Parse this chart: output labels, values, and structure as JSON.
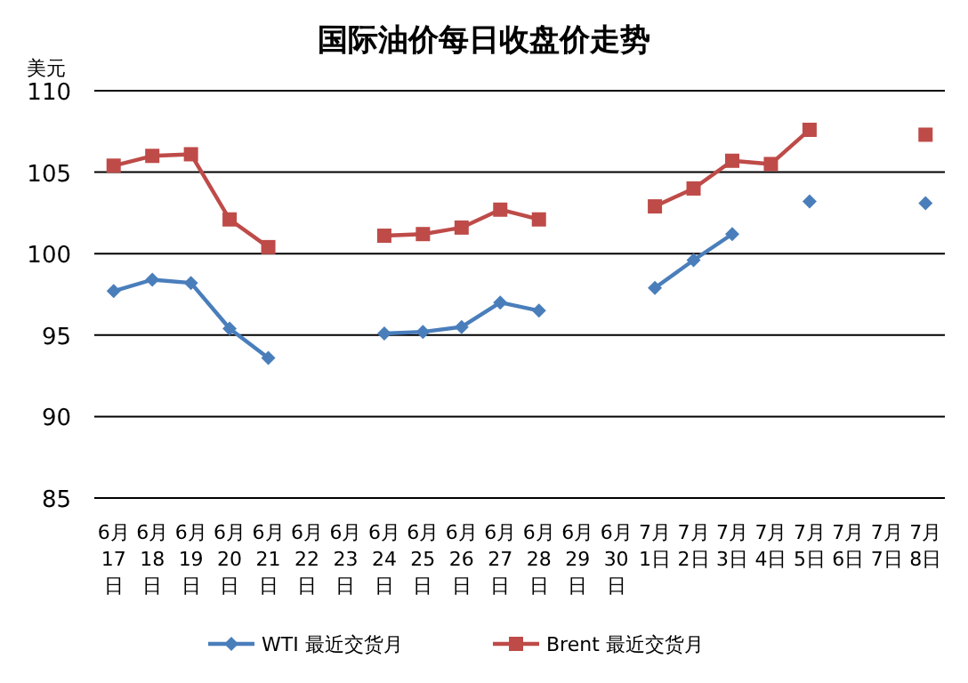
{
  "chart_data": {
    "type": "line",
    "title": "国际油价每日收盘价走势",
    "ylabel": "美元",
    "categories": [
      "6月17日",
      "6月18日",
      "6月19日",
      "6月20日",
      "6月21日",
      "6月22日",
      "6月23日",
      "6月24日",
      "6月25日",
      "6月26日",
      "6月27日",
      "6月28日",
      "6月29日",
      "6月30日",
      "7月1日",
      "7月2日",
      "7月3日",
      "7月4日",
      "7月5日",
      "7月6日",
      "7月7日",
      "7月8日"
    ],
    "series": [
      {
        "name": "WTI 最近交货月",
        "color": "#4a7ebb",
        "marker": "diamond",
        "values": [
          97.7,
          98.4,
          98.2,
          95.4,
          93.6,
          null,
          null,
          95.1,
          95.2,
          95.5,
          97.0,
          96.5,
          null,
          null,
          97.9,
          99.6,
          101.2,
          null,
          103.2,
          null,
          null,
          103.1
        ]
      },
      {
        "name": "Brent 最近交货月",
        "color": "#be4b48",
        "marker": "square",
        "values": [
          105.4,
          106.0,
          106.1,
          102.1,
          100.4,
          null,
          null,
          101.1,
          101.2,
          101.6,
          102.7,
          102.1,
          null,
          null,
          102.9,
          104.0,
          105.7,
          105.5,
          107.6,
          null,
          null,
          107.3
        ]
      }
    ],
    "ylim": [
      85,
      110
    ],
    "yticks": [
      85,
      90,
      95,
      100,
      105,
      110
    ],
    "grid": "y",
    "legend": "bottom"
  }
}
